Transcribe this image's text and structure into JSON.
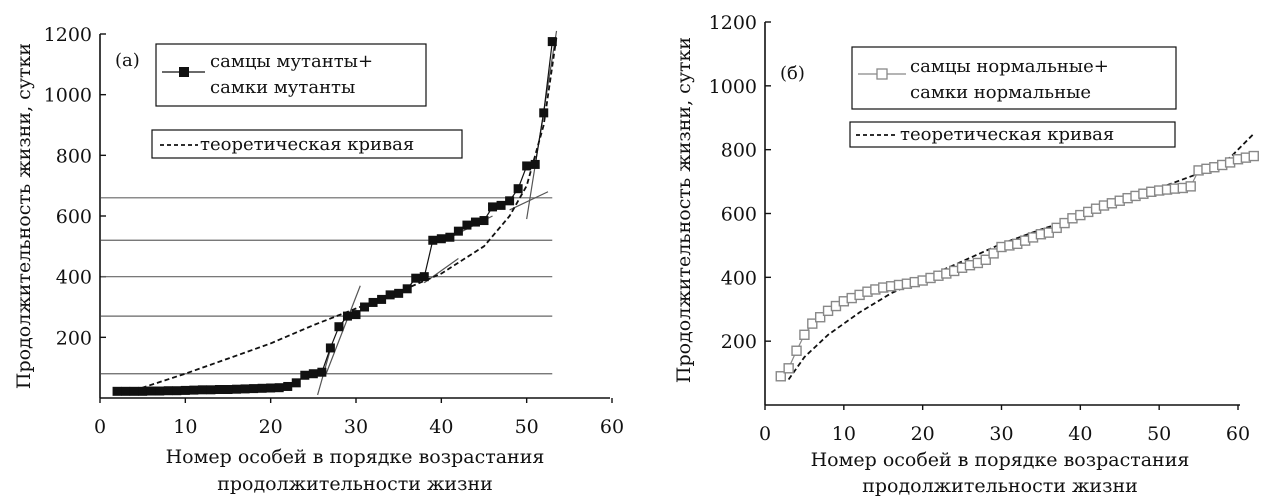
{
  "charts": [
    {
      "panel_label": "(а)",
      "type": "scatter",
      "xlabel": [
        "Номер особей в порядке возрастания",
        "продолжительности жизни"
      ],
      "ylabel": "Продолжительность жизни, сутки",
      "xlim": [
        0,
        60
      ],
      "ylim": [
        0,
        1200
      ],
      "xticks": [
        0,
        10,
        20,
        30,
        40,
        50,
        60
      ],
      "yticks": [
        200,
        400,
        600,
        800,
        1000,
        1200
      ],
      "legend": {
        "series_line1": "самцы мутанты+",
        "series_line2": "самки мутанты",
        "theory": "теоретическая кривая"
      },
      "marker": "filled-square",
      "series_color": "#111111",
      "points": [
        [
          2,
          22
        ],
        [
          3,
          22
        ],
        [
          4,
          22
        ],
        [
          5,
          22
        ],
        [
          6,
          23
        ],
        [
          7,
          23
        ],
        [
          8,
          24
        ],
        [
          9,
          24
        ],
        [
          10,
          25
        ],
        [
          11,
          26
        ],
        [
          12,
          27
        ],
        [
          13,
          27
        ],
        [
          14,
          28
        ],
        [
          15,
          28
        ],
        [
          16,
          29
        ],
        [
          17,
          30
        ],
        [
          18,
          31
        ],
        [
          19,
          32
        ],
        [
          20,
          33
        ],
        [
          21,
          34
        ],
        [
          22,
          38
        ],
        [
          23,
          50
        ],
        [
          24,
          75
        ],
        [
          25,
          80
        ],
        [
          26,
          85
        ],
        [
          27,
          165
        ],
        [
          28,
          235
        ],
        [
          29,
          270
        ],
        [
          30,
          275
        ],
        [
          31,
          300
        ],
        [
          32,
          315
        ],
        [
          33,
          325
        ],
        [
          34,
          340
        ],
        [
          35,
          345
        ],
        [
          36,
          360
        ],
        [
          37,
          395
        ],
        [
          38,
          400
        ],
        [
          39,
          520
        ],
        [
          40,
          525
        ],
        [
          41,
          530
        ],
        [
          42,
          550
        ],
        [
          43,
          570
        ],
        [
          44,
          580
        ],
        [
          45,
          585
        ],
        [
          46,
          630
        ],
        [
          47,
          635
        ],
        [
          48,
          650
        ],
        [
          49,
          690
        ],
        [
          50,
          765
        ],
        [
          51,
          770
        ],
        [
          52,
          940
        ],
        [
          53,
          1175
        ]
      ],
      "theory_curve": [
        [
          4,
          25
        ],
        [
          10,
          80
        ],
        [
          15,
          130
        ],
        [
          20,
          180
        ],
        [
          25,
          240
        ],
        [
          30,
          295
        ],
        [
          35,
          350
        ],
        [
          40,
          410
        ],
        [
          45,
          500
        ],
        [
          48,
          600
        ],
        [
          50,
          700
        ],
        [
          52,
          900
        ],
        [
          53.5,
          1190
        ]
      ],
      "reference_lines_y": [
        80,
        270,
        400,
        520,
        660
      ],
      "fit_segments": [
        [
          [
            25.5,
            10
          ],
          [
            27,
            160
          ]
        ],
        [
          [
            26.5,
            80
          ],
          [
            30.5,
            370
          ]
        ],
        [
          [
            38,
            380
          ],
          [
            42,
            460
          ]
        ],
        [
          [
            40,
            515
          ],
          [
            46,
            600
          ]
        ],
        [
          [
            48,
            620
          ],
          [
            52.5,
            680
          ]
        ],
        [
          [
            50,
            590
          ],
          [
            53.5,
            1210
          ]
        ]
      ]
    },
    {
      "panel_label": "(б)",
      "type": "scatter",
      "xlabel": [
        "Номер особей в порядке возрастания",
        "продолжительности жизни"
      ],
      "ylabel": "Продолжительность жизни, сутки",
      "xlim": [
        0,
        60
      ],
      "ylim": [
        0,
        1200
      ],
      "xticks": [
        0,
        10,
        20,
        30,
        40,
        50,
        60
      ],
      "yticks": [
        200,
        400,
        600,
        800,
        1000,
        1200
      ],
      "legend": {
        "series_line1": "самцы нормальные+",
        "series_line2": "самки нормальные",
        "theory": "теоретическая кривая"
      },
      "marker": "open-square",
      "series_color": "#888888",
      "points": [
        [
          2,
          90
        ],
        [
          3,
          115
        ],
        [
          4,
          170
        ],
        [
          5,
          220
        ],
        [
          6,
          255
        ],
        [
          7,
          275
        ],
        [
          8,
          295
        ],
        [
          9,
          310
        ],
        [
          10,
          325
        ],
        [
          11,
          335
        ],
        [
          12,
          345
        ],
        [
          13,
          355
        ],
        [
          14,
          362
        ],
        [
          15,
          368
        ],
        [
          16,
          372
        ],
        [
          17,
          376
        ],
        [
          18,
          380
        ],
        [
          19,
          385
        ],
        [
          20,
          390
        ],
        [
          21,
          398
        ],
        [
          22,
          405
        ],
        [
          23,
          412
        ],
        [
          24,
          420
        ],
        [
          25,
          430
        ],
        [
          26,
          438
        ],
        [
          27,
          445
        ],
        [
          28,
          455
        ],
        [
          29,
          475
        ],
        [
          30,
          495
        ],
        [
          31,
          500
        ],
        [
          32,
          505
        ],
        [
          33,
          515
        ],
        [
          34,
          525
        ],
        [
          35,
          535
        ],
        [
          36,
          540
        ],
        [
          37,
          555
        ],
        [
          38,
          570
        ],
        [
          39,
          585
        ],
        [
          40,
          595
        ],
        [
          41,
          605
        ],
        [
          42,
          615
        ],
        [
          43,
          625
        ],
        [
          44,
          632
        ],
        [
          45,
          640
        ],
        [
          46,
          648
        ],
        [
          47,
          655
        ],
        [
          48,
          662
        ],
        [
          49,
          668
        ],
        [
          50,
          672
        ],
        [
          51,
          675
        ],
        [
          52,
          678
        ],
        [
          53,
          680
        ],
        [
          54,
          685
        ],
        [
          55,
          735
        ],
        [
          56,
          740
        ],
        [
          57,
          745
        ],
        [
          58,
          752
        ],
        [
          59,
          760
        ],
        [
          60,
          770
        ],
        [
          61,
          775
        ],
        [
          62,
          780
        ]
      ],
      "theory_curve": [
        [
          3,
          80
        ],
        [
          5,
          150
        ],
        [
          8,
          220
        ],
        [
          12,
          290
        ],
        [
          16,
          350
        ],
        [
          20,
          395
        ],
        [
          25,
          450
        ],
        [
          30,
          505
        ],
        [
          35,
          550
        ],
        [
          40,
          590
        ],
        [
          45,
          635
        ],
        [
          50,
          680
        ],
        [
          55,
          725
        ],
        [
          59,
          775
        ],
        [
          62,
          850
        ]
      ]
    }
  ]
}
